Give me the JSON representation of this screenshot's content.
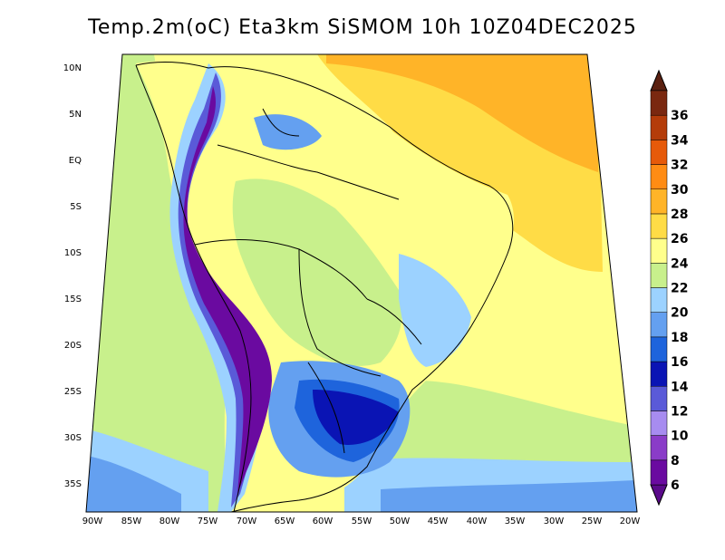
{
  "title": "Temp.2m(oC) Eta3km SiSMOM 10h 10Z04DEC2025",
  "chart_data": {
    "type": "heatmap",
    "variable": "Temp.2m(oC)",
    "model": "Eta3km",
    "run": "SiSMOM",
    "forecast_hour": "10h",
    "valid_time": "10Z04DEC2025",
    "lat_ticks": [
      "10N",
      "5N",
      "EQ",
      "5S",
      "10S",
      "15S",
      "20S",
      "25S",
      "30S",
      "35S"
    ],
    "lon_ticks": [
      "90W",
      "85W",
      "80W",
      "75W",
      "70W",
      "65W",
      "60W",
      "55W",
      "50W",
      "45W",
      "40W",
      "35W",
      "30W",
      "25W",
      "20W"
    ],
    "lat_range": [
      -38,
      12
    ],
    "lon_range": [
      -90,
      -20
    ],
    "colorbar": {
      "labels": [
        "6",
        "8",
        "10",
        "12",
        "14",
        "16",
        "18",
        "20",
        "22",
        "24",
        "26",
        "28",
        "30",
        "32",
        "34",
        "36"
      ],
      "colors": [
        "#6a0aa0",
        "#8a3cc8",
        "#a78cf0",
        "#5a5ad8",
        "#0a14b4",
        "#1e64dc",
        "#64a0f0",
        "#9cd2ff",
        "#c8f08c",
        "#ffff8c",
        "#ffdc46",
        "#ffb428",
        "#ff8c14",
        "#e65a0a",
        "#b43c0a",
        "#7a2810"
      ],
      "lower_arrow_color": "#5a0a8a",
      "upper_arrow_color": "#5a2010"
    },
    "grid": false
  }
}
